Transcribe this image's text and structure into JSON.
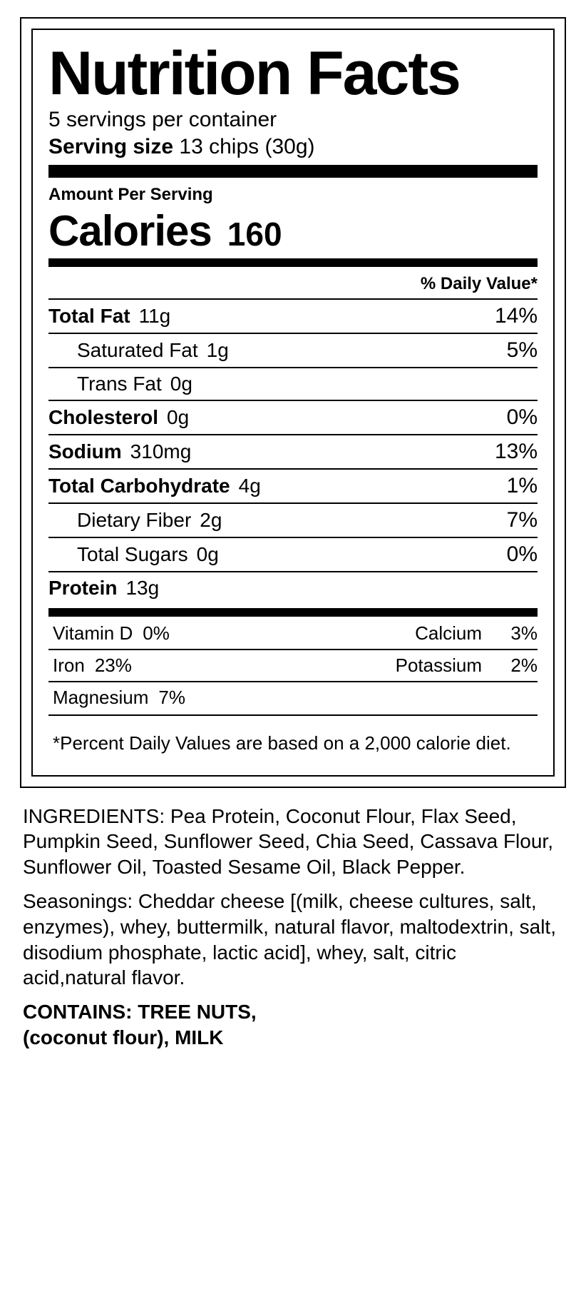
{
  "colors": {
    "fg": "#000000",
    "bg": "#ffffff"
  },
  "typography": {
    "family": "Helvetica, Arial, sans-serif"
  },
  "header": {
    "title": "Nutrition Facts",
    "servings_per_container": "5 servings per container",
    "serving_size_label": "Serving size",
    "serving_size_value": "13 chips (30g)"
  },
  "amount_per_serving_label": "Amount Per Serving",
  "calories": {
    "label": "Calories",
    "value": "160"
  },
  "dv_header": "% Daily Value*",
  "nutrients": [
    {
      "label": "Total Fat",
      "amount": "11g",
      "dv": "14%",
      "bold": true,
      "indent": 0
    },
    {
      "label": "Saturated Fat",
      "amount": "1g",
      "dv": "5%",
      "bold": false,
      "indent": 1
    },
    {
      "label": "Trans Fat",
      "amount": "0g",
      "dv": "",
      "bold": false,
      "indent": 1
    },
    {
      "label": "Cholesterol",
      "amount": "0g",
      "dv": "0%",
      "bold": true,
      "indent": 0
    },
    {
      "label": "Sodium",
      "amount": "310mg",
      "dv": "13%",
      "bold": true,
      "indent": 0
    },
    {
      "label": "Total Carbohydrate",
      "amount": "4g",
      "dv": "1%",
      "bold": true,
      "indent": 0
    },
    {
      "label": "Dietary Fiber",
      "amount": "2g",
      "dv": "7%",
      "bold": false,
      "indent": 1
    },
    {
      "label": "Total Sugars",
      "amount": "0g",
      "dv": "0%",
      "bold": false,
      "indent": 1
    },
    {
      "label": "Protein",
      "amount": "13g",
      "dv": "",
      "bold": true,
      "indent": 0
    }
  ],
  "vitamins": [
    [
      {
        "name": "Vitamin D",
        "value": "0%"
      },
      {
        "name": "Calcium",
        "value": "3%"
      }
    ],
    [
      {
        "name": "Iron",
        "value": "23%"
      },
      {
        "name": "Potassium",
        "value": "2%"
      }
    ],
    [
      {
        "name": "Magnesium",
        "value": "7%"
      },
      null
    ]
  ],
  "footnote": "*Percent Daily Values are based on a 2,000 calorie diet.",
  "ingredients": {
    "main_label": "INGREDIENTS:",
    "main_text": "Pea Protein, Coconut Flour, Flax Seed, Pumpkin Seed, Sunflower Seed, Chia Seed, Cassava Flour, Sunflower Oil, Toasted Sesame Oil, Black Pepper.",
    "seasonings_label": "Seasonings:",
    "seasonings_text": "Cheddar cheese [(milk, cheese cultures, salt, enzymes), whey, buttermilk, natural flavor, maltodextrin, salt, disodium phosphate, lactic acid], whey, salt, citric acid,natural flavor.",
    "contains_line1": "CONTAINS: TREE NUTS,",
    "contains_line2": "(coconut flour), MILK"
  }
}
